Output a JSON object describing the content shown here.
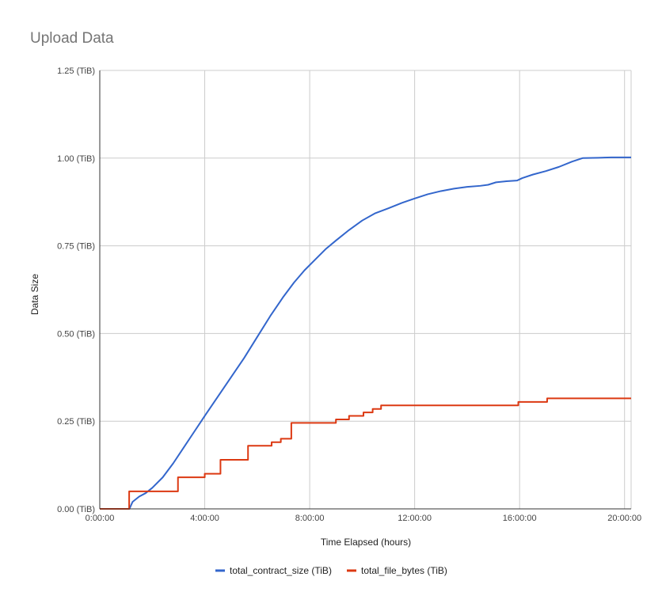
{
  "chart_data": {
    "type": "line",
    "title": "Upload Data",
    "xlabel": "Time Elapsed (hours)",
    "ylabel": "Data Size",
    "x_unit": "hours",
    "xlim": [
      0,
      20.25
    ],
    "ylim": [
      0,
      1.25
    ],
    "x_ticks": [
      {
        "value": 0,
        "label": "0:00:00"
      },
      {
        "value": 4,
        "label": "4:00:00"
      },
      {
        "value": 8,
        "label": "8:00:00"
      },
      {
        "value": 12,
        "label": "12:00:00"
      },
      {
        "value": 16,
        "label": "16:00:00"
      },
      {
        "value": 20,
        "label": "20:00:00"
      }
    ],
    "y_ticks": [
      {
        "value": 0,
        "label": "0.00 (TiB)"
      },
      {
        "value": 0.25,
        "label": "0.25 (TiB)"
      },
      {
        "value": 0.5,
        "label": "0.50 (TiB)"
      },
      {
        "value": 0.75,
        "label": "0.75 (TiB)"
      },
      {
        "value": 1.0,
        "label": "1.00 (TiB)"
      },
      {
        "value": 1.25,
        "label": "1.25 (TiB)"
      }
    ],
    "grid": true,
    "legend_position": "bottom",
    "series": [
      {
        "name": "total_contract_size (TiB)",
        "color": "#3366cc",
        "step": false,
        "points": [
          [
            0,
            0
          ],
          [
            1.13,
            0
          ],
          [
            1.25,
            0.02
          ],
          [
            1.5,
            0.035
          ],
          [
            1.75,
            0.045
          ],
          [
            2.0,
            0.06
          ],
          [
            2.4,
            0.09
          ],
          [
            2.8,
            0.13
          ],
          [
            3.2,
            0.175
          ],
          [
            3.6,
            0.22
          ],
          [
            4.0,
            0.265
          ],
          [
            4.5,
            0.32
          ],
          [
            5.0,
            0.375
          ],
          [
            5.5,
            0.43
          ],
          [
            6.0,
            0.49
          ],
          [
            6.5,
            0.55
          ],
          [
            7.0,
            0.605
          ],
          [
            7.4,
            0.645
          ],
          [
            7.8,
            0.68
          ],
          [
            8.2,
            0.71
          ],
          [
            8.6,
            0.74
          ],
          [
            9.0,
            0.765
          ],
          [
            9.5,
            0.795
          ],
          [
            10.0,
            0.822
          ],
          [
            10.5,
            0.843
          ],
          [
            11.0,
            0.857
          ],
          [
            11.5,
            0.872
          ],
          [
            12.0,
            0.885
          ],
          [
            12.5,
            0.897
          ],
          [
            13.0,
            0.906
          ],
          [
            13.5,
            0.913
          ],
          [
            14.0,
            0.918
          ],
          [
            14.5,
            0.921
          ],
          [
            14.8,
            0.924
          ],
          [
            15.1,
            0.931
          ],
          [
            15.5,
            0.934
          ],
          [
            15.9,
            0.936
          ],
          [
            16.1,
            0.943
          ],
          [
            16.5,
            0.953
          ],
          [
            17.0,
            0.963
          ],
          [
            17.5,
            0.975
          ],
          [
            18.0,
            0.99
          ],
          [
            18.4,
            1.0
          ],
          [
            19.0,
            1.001
          ],
          [
            19.5,
            1.002
          ],
          [
            20.25,
            1.002
          ]
        ]
      },
      {
        "name": "total_file_bytes (TiB)",
        "color": "#dc3912",
        "step": true,
        "points": [
          [
            0,
            0
          ],
          [
            1.12,
            0.05
          ],
          [
            2.98,
            0.09
          ],
          [
            4.0,
            0.1
          ],
          [
            4.6,
            0.14
          ],
          [
            5.65,
            0.18
          ],
          [
            6.55,
            0.19
          ],
          [
            6.9,
            0.2
          ],
          [
            7.3,
            0.245
          ],
          [
            9.0,
            0.255
          ],
          [
            9.5,
            0.265
          ],
          [
            10.05,
            0.275
          ],
          [
            10.4,
            0.285
          ],
          [
            10.72,
            0.295
          ],
          [
            15.95,
            0.305
          ],
          [
            17.05,
            0.315
          ],
          [
            20.25,
            0.315
          ]
        ]
      }
    ]
  }
}
